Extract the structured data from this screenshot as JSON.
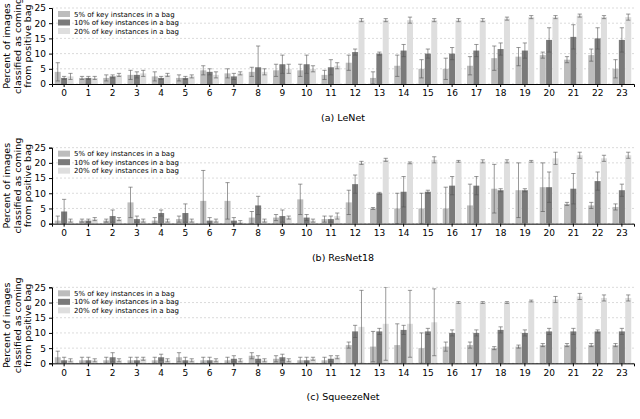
{
  "chart_data": [
    {
      "type": "bar",
      "title": "(a) LeNet",
      "y_label": "Percent of images classified as coming from positive bag",
      "categories": [
        "0",
        "1",
        "2",
        "3",
        "4",
        "5",
        "6",
        "7",
        "8",
        "9",
        "10",
        "11",
        "12",
        "13",
        "14",
        "15",
        "16",
        "17",
        "18",
        "19",
        "20",
        "21",
        "22",
        "23"
      ],
      "ylim": [
        0,
        25
      ],
      "yticks": [
        0,
        5,
        10,
        15,
        20,
        25
      ],
      "grid": true,
      "legend": "upper left",
      "series": [
        {
          "name": "5% of key instances in a bag",
          "color": "#bdbdbd",
          "values": [
            4,
            2,
            2,
            3,
            2.5,
            2,
            4.5,
            3.5,
            4,
            4.5,
            4.5,
            3,
            7,
            2,
            6,
            5,
            5,
            6,
            8.5,
            9,
            9.5,
            8,
            9.5,
            5
          ],
          "errors": [
            3,
            0.5,
            1,
            1.5,
            1.5,
            1,
            1.5,
            1.5,
            1.5,
            2,
            2,
            1.5,
            2.5,
            2,
            3.5,
            3,
            3.5,
            3,
            4,
            3,
            1,
            1,
            2,
            3
          ]
        },
        {
          "name": "10% of key instances in a bag",
          "color": "#7a7a7a",
          "values": [
            2,
            2,
            2.5,
            3,
            2,
            2,
            4,
            2.5,
            5.5,
            6.5,
            6.5,
            5.5,
            10.5,
            10,
            11,
            10,
            10,
            11,
            11.5,
            11,
            14.5,
            15.5,
            15,
            14.5
          ],
          "errors": [
            0.5,
            0.5,
            0.5,
            1,
            0.5,
            0.5,
            1,
            1,
            7,
            3,
            3,
            2.5,
            1,
            0.5,
            2,
            1.5,
            2,
            2,
            2,
            2.5,
            4,
            4,
            3.5,
            4
          ]
        },
        {
          "name": "20% of key instances in a bag",
          "color": "#dedede",
          "values": [
            2.5,
            2,
            3,
            3.5,
            3,
            2.5,
            3,
            3.5,
            4,
            5,
            5,
            6,
            21,
            21,
            21,
            21,
            21,
            21,
            21.5,
            22,
            22,
            22.5,
            22,
            22
          ],
          "errors": [
            1,
            0.5,
            0.5,
            1,
            0.5,
            0.5,
            1,
            0.5,
            1,
            1.5,
            1,
            1,
            0.5,
            0.5,
            1,
            0.5,
            0.5,
            0.5,
            0.5,
            0.5,
            0.5,
            0.5,
            0.5,
            1
          ]
        }
      ]
    },
    {
      "type": "bar",
      "title": "(b) ResNet18",
      "y_label": "Percent of images classified as coming from positive bag",
      "categories": [
        "0",
        "1",
        "2",
        "3",
        "4",
        "5",
        "6",
        "7",
        "8",
        "9",
        "10",
        "11",
        "12",
        "13",
        "14",
        "15",
        "16",
        "17",
        "18",
        "19",
        "20",
        "21",
        "22",
        "23"
      ],
      "ylim": [
        0,
        25
      ],
      "yticks": [
        0,
        5,
        10,
        15,
        20,
        25
      ],
      "grid": true,
      "legend": "upper left",
      "series": [
        {
          "name": "5% of key instances in a bag",
          "color": "#bdbdbd",
          "values": [
            1,
            1,
            1,
            7,
            1,
            1.5,
            7.5,
            7.5,
            2,
            2,
            8,
            1.5,
            7,
            5,
            5,
            5,
            5,
            6,
            11.5,
            11,
            12,
            6.5,
            6,
            5.5
          ],
          "errors": [
            1.5,
            0.5,
            0.5,
            5,
            1,
            1,
            10,
            6,
            2,
            1,
            5,
            1,
            4,
            0.3,
            5,
            5,
            7,
            7,
            8,
            9,
            8,
            0.5,
            1,
            1
          ]
        },
        {
          "name": "10% of key instances in a bag",
          "color": "#7a7a7a",
          "values": [
            4,
            1,
            2.5,
            1.5,
            3.5,
            3.5,
            1,
            1,
            6,
            2.5,
            2,
            1.5,
            13,
            10,
            10.5,
            10.5,
            12.5,
            12.5,
            11,
            11,
            12,
            11.5,
            14,
            11
          ],
          "errors": [
            4,
            0.5,
            2,
            1,
            1,
            3,
            1,
            1,
            3,
            2,
            1,
            1,
            3,
            0.3,
            5,
            0.5,
            3,
            3,
            0.5,
            0.5,
            5,
            5,
            3,
            2
          ]
        },
        {
          "name": "20% of key instances in a bag",
          "color": "#dedede",
          "values": [
            1,
            1.5,
            1.5,
            1,
            1,
            1,
            1,
            0.5,
            1,
            2,
            1,
            2.5,
            20,
            21,
            20,
            21,
            20.5,
            20.5,
            20.5,
            20.5,
            21.5,
            22.5,
            21.5,
            22.5
          ],
          "errors": [
            0.5,
            0.5,
            0.5,
            0.5,
            0.5,
            0.5,
            0.5,
            0.5,
            0.5,
            0.5,
            0.5,
            1,
            0.5,
            0.5,
            0.3,
            1,
            0.3,
            0.5,
            0.5,
            0.3,
            2,
            1,
            1,
            1
          ]
        }
      ]
    },
    {
      "type": "bar",
      "title": "(c) SqueezeNet",
      "y_label": "Percent of images classified as coming from positive bag",
      "categories": [
        "0",
        "1",
        "2",
        "3",
        "4",
        "5",
        "6",
        "7",
        "8",
        "9",
        "10",
        "11",
        "12",
        "13",
        "14",
        "15",
        "16",
        "17",
        "18",
        "19",
        "20",
        "21",
        "22",
        "23"
      ],
      "ylim": [
        0,
        25
      ],
      "yticks": [
        0,
        5,
        10,
        15,
        20,
        25
      ],
      "grid": true,
      "legend": "upper left",
      "series": [
        {
          "name": "5% of key instances in a bag",
          "color": "#bdbdbd",
          "values": [
            2,
            1,
            1,
            1,
            1,
            2,
            1,
            1,
            2.5,
            1.5,
            1,
            1,
            6,
            5.5,
            6,
            5,
            5.5,
            6,
            5,
            5.5,
            6,
            6,
            6,
            6
          ],
          "errors": [
            2,
            1,
            1,
            1,
            1,
            1.5,
            1,
            1,
            1,
            1,
            1,
            1,
            1,
            5,
            7,
            5,
            1.5,
            1,
            0.5,
            0.5,
            0.5,
            0.5,
            0.5,
            0.5
          ]
        },
        {
          "name": "10% of key instances in a bag",
          "color": "#7a7a7a",
          "values": [
            1,
            1,
            2,
            1,
            2,
            1,
            1,
            1.5,
            1.5,
            2,
            1,
            1.5,
            10.5,
            10.5,
            11,
            10.5,
            10,
            10,
            11,
            10,
            10.5,
            10.5,
            10.5,
            10.5
          ],
          "errors": [
            1,
            1,
            1.5,
            1,
            1,
            1,
            1,
            1,
            1,
            1,
            1,
            1,
            2,
            1,
            1.5,
            1,
            1,
            1,
            1,
            1,
            1,
            1,
            0.5,
            1
          ]
        },
        {
          "name": "20% of key instances in a bag",
          "color": "#dedede",
          "values": [
            1,
            1,
            1,
            1.5,
            1,
            1,
            1,
            1,
            1,
            1,
            1.5,
            2,
            12,
            13,
            13,
            13.5,
            20,
            20,
            20,
            20.5,
            21,
            22,
            21.5,
            21.5
          ],
          "errors": [
            0.5,
            0.5,
            0.5,
            0.5,
            0.5,
            0.5,
            0.5,
            0.5,
            0.5,
            0.5,
            0.5,
            0.5,
            12,
            12,
            11,
            11,
            0.3,
            0.3,
            0.3,
            0.3,
            1,
            1,
            1,
            1
          ]
        }
      ]
    }
  ]
}
